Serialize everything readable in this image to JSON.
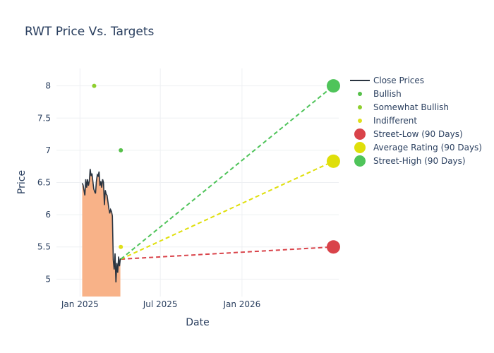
{
  "chart_data": {
    "type": "line",
    "title": "RWT Price Vs. Targets",
    "xlabel": "Date",
    "ylabel": "Price",
    "xlim": [
      "2024-11-09",
      "2026-08-07"
    ],
    "ylim": [
      4.73,
      8.27
    ],
    "x_ticks": [
      {
        "date": "2025-01-01",
        "label": "Jan 2025"
      },
      {
        "date": "2025-07-01",
        "label": "Jul 2025"
      },
      {
        "date": "2026-01-01",
        "label": "Jan 2026"
      }
    ],
    "y_ticks": [
      5,
      5.5,
      6,
      6.5,
      7,
      7.5,
      8
    ],
    "grid": true,
    "legend_position": "top-right",
    "colors": {
      "close": "#2a3440",
      "area_fill": "#f8b288",
      "bullish": "#56c04a",
      "somewhat_bullish": "#8ecf2e",
      "indifferent": "#dfdf1a",
      "street_low": "#d9434a",
      "average": "#dfdf0a",
      "street_high": "#4fc45a"
    },
    "close_prices": [
      [
        "2025-01-06",
        6.49
      ],
      [
        "2025-01-08",
        6.46
      ],
      [
        "2025-01-10",
        6.38
      ],
      [
        "2025-01-12",
        6.3
      ],
      [
        "2025-01-14",
        6.55
      ],
      [
        "2025-01-16",
        6.42
      ],
      [
        "2025-01-18",
        6.55
      ],
      [
        "2025-01-20",
        6.45
      ],
      [
        "2025-01-22",
        6.52
      ],
      [
        "2025-01-24",
        6.71
      ],
      [
        "2025-01-26",
        6.6
      ],
      [
        "2025-01-28",
        6.64
      ],
      [
        "2025-01-30",
        6.52
      ],
      [
        "2025-02-01",
        6.4
      ],
      [
        "2025-02-03",
        6.36
      ],
      [
        "2025-02-05",
        6.33
      ],
      [
        "2025-02-07",
        6.52
      ],
      [
        "2025-02-09",
        6.62
      ],
      [
        "2025-02-11",
        6.6
      ],
      [
        "2025-02-13",
        6.67
      ],
      [
        "2025-02-15",
        6.45
      ],
      [
        "2025-02-17",
        6.52
      ],
      [
        "2025-02-19",
        6.42
      ],
      [
        "2025-02-21",
        6.55
      ],
      [
        "2025-02-23",
        6.5
      ],
      [
        "2025-02-25",
        6.15
      ],
      [
        "2025-02-27",
        6.38
      ],
      [
        "2025-03-01",
        6.32
      ],
      [
        "2025-03-03",
        6.3
      ],
      [
        "2025-03-05",
        6.2
      ],
      [
        "2025-03-07",
        6.1
      ],
      [
        "2025-03-09",
        6.02
      ],
      [
        "2025-03-11",
        6.08
      ],
      [
        "2025-03-13",
        6.05
      ],
      [
        "2025-03-15",
        5.98
      ],
      [
        "2025-03-17",
        5.3
      ],
      [
        "2025-03-19",
        5.15
      ],
      [
        "2025-03-21",
        5.4
      ],
      [
        "2025-03-23",
        4.95
      ],
      [
        "2025-03-25",
        5.25
      ],
      [
        "2025-03-27",
        5.1
      ],
      [
        "2025-03-29",
        5.35
      ],
      [
        "2025-03-31",
        5.2
      ],
      [
        "2025-04-02",
        5.32
      ]
    ],
    "analyst_ratings": [
      {
        "series": "Bullish",
        "date": "2025-04-03",
        "value": 7.0
      },
      {
        "series": "Somewhat Bullish",
        "date": "2025-02-02",
        "value": 8.0
      },
      {
        "series": "Indifferent",
        "date": "2025-04-03",
        "value": 5.5
      }
    ],
    "targets": [
      {
        "series": "Street-Low (90 Days)",
        "start": [
          "2025-04-03",
          5.31
        ],
        "end": [
          "2026-07-26",
          5.5
        ]
      },
      {
        "series": "Average Rating (90 Days)",
        "start": [
          "2025-04-03",
          5.31
        ],
        "end": [
          "2026-07-26",
          6.83
        ]
      },
      {
        "series": "Street-High (90 Days)",
        "start": [
          "2025-04-03",
          5.31
        ],
        "end": [
          "2026-07-26",
          8.0
        ]
      }
    ],
    "legend": [
      {
        "label": "Close Prices",
        "kind": "line",
        "color": "#2a3440"
      },
      {
        "label": "Bullish",
        "kind": "dot",
        "color": "#56c04a"
      },
      {
        "label": "Somewhat Bullish",
        "kind": "dot",
        "color": "#8ecf2e"
      },
      {
        "label": "Indifferent",
        "kind": "dot",
        "color": "#dfdf1a"
      },
      {
        "label": "Street-Low (90 Days)",
        "kind": "big",
        "color": "#d9434a"
      },
      {
        "label": "Average Rating (90 Days)",
        "kind": "big",
        "color": "#dfdf0a"
      },
      {
        "label": "Street-High (90 Days)",
        "kind": "big",
        "color": "#4fc45a"
      }
    ]
  }
}
